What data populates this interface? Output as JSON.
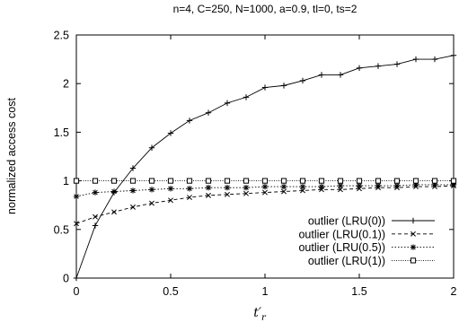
{
  "chart_data": {
    "type": "line",
    "title": "n=4, C=250, N=1000, a=0.9, tl=0, ts=2",
    "xlabel": "t′",
    "xlabel_subscript": "r",
    "ylabel": "normalized access cost",
    "xlim": [
      0,
      2
    ],
    "ylim": [
      0,
      2.5
    ],
    "xticks": [
      0,
      0.5,
      1,
      1.5,
      2
    ],
    "xtick_labels": [
      "0",
      "0.5",
      "1",
      "1.5",
      "2"
    ],
    "yticks": [
      0,
      0.5,
      1,
      1.5,
      2,
      2.5
    ],
    "ytick_labels": [
      "0",
      "0.5",
      "1",
      "1.5",
      "2",
      "2.5"
    ],
    "grid": false,
    "legend_position": "bottom-right",
    "x": [
      0,
      0.1,
      0.2,
      0.3,
      0.4,
      0.5,
      0.6,
      0.7,
      0.8,
      0.9,
      1.0,
      1.1,
      1.2,
      1.3,
      1.4,
      1.5,
      1.6,
      1.7,
      1.8,
      1.9,
      2.0
    ],
    "series": [
      {
        "name": "outlier (LRU(0))",
        "marker": "plus",
        "dash": "",
        "values": [
          0.0,
          0.54,
          0.88,
          1.13,
          1.34,
          1.49,
          1.62,
          1.7,
          1.8,
          1.86,
          1.96,
          1.98,
          2.03,
          2.09,
          2.09,
          2.16,
          2.18,
          2.2,
          2.25,
          2.25,
          2.29
        ]
      },
      {
        "name": "outlier (LRU(0.1))",
        "marker": "x",
        "dash": "4,3",
        "values": [
          0.56,
          0.63,
          0.68,
          0.73,
          0.77,
          0.8,
          0.83,
          0.85,
          0.86,
          0.87,
          0.88,
          0.89,
          0.9,
          0.91,
          0.91,
          0.92,
          0.93,
          0.93,
          0.94,
          0.94,
          0.95
        ]
      },
      {
        "name": "outlier (LRU(0.5))",
        "marker": "star",
        "dash": "1.5,2",
        "values": [
          0.84,
          0.88,
          0.89,
          0.9,
          0.91,
          0.92,
          0.92,
          0.93,
          0.93,
          0.93,
          0.94,
          0.94,
          0.94,
          0.94,
          0.95,
          0.95,
          0.95,
          0.95,
          0.96,
          0.96,
          0.96
        ]
      },
      {
        "name": "outlier (LRU(1))",
        "marker": "square",
        "dash": "1,1.5",
        "values": [
          1.0,
          1.0,
          1.0,
          1.0,
          1.0,
          1.0,
          1.0,
          1.0,
          1.0,
          1.0,
          1.0,
          1.0,
          1.0,
          1.0,
          1.0,
          1.0,
          1.0,
          1.0,
          1.0,
          1.0,
          1.0
        ]
      }
    ]
  }
}
